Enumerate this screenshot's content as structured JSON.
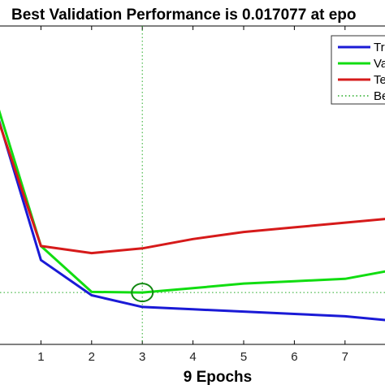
{
  "chart_data": {
    "type": "line",
    "title": "Best Validation Performance is 0.017077 at epo",
    "xlabel": "9 Epochs",
    "ylabel": "",
    "xlim": [
      0,
      9
    ],
    "ylim": [
      0.006,
      0.074
    ],
    "x_ticks": [
      "1",
      "2",
      "3",
      "4",
      "5",
      "6",
      "7"
    ],
    "grid": false,
    "legend_position": "top-right",
    "best_marker": {
      "x": 3,
      "y": 0.017077
    },
    "series": [
      {
        "name": "Tr",
        "color": "#1a1ad6",
        "x": [
          0,
          1,
          2,
          3,
          4,
          5,
          6,
          7,
          8
        ],
        "y": [
          0.06,
          0.024,
          0.0165,
          0.014,
          0.0135,
          0.013,
          0.0125,
          0.012,
          0.011
        ]
      },
      {
        "name": "Va",
        "color": "#11dd11",
        "x": [
          0,
          1,
          2,
          3,
          4,
          5,
          6,
          7,
          8
        ],
        "y": [
          0.062,
          0.027,
          0.0172,
          0.017077,
          0.018,
          0.019,
          0.0195,
          0.02,
          0.022
        ]
      },
      {
        "name": "Te",
        "color": "#d61a1a",
        "x": [
          0,
          1,
          2,
          3,
          4,
          5,
          6,
          7,
          8
        ],
        "y": [
          0.059,
          0.027,
          0.0255,
          0.0265,
          0.0285,
          0.03,
          0.031,
          0.032,
          0.033
        ]
      },
      {
        "name": "Be",
        "color": "#22aa22",
        "dotted": true
      }
    ]
  }
}
